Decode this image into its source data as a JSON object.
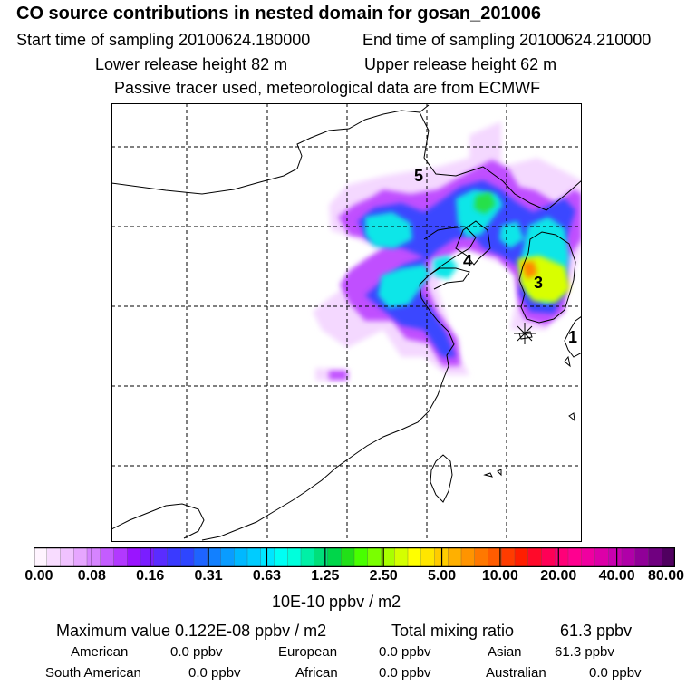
{
  "title": "CO  source contributions in nested domain for gosan_201006",
  "header": {
    "start_label": "Start time of sampling 20100624.180000",
    "end_label": "End time of sampling 20100624.210000",
    "lower_label": "Lower release height   82 m",
    "upper_label": "Upper release height   62 m",
    "info": "Passive tracer used, meteorological data are from ECMWF"
  },
  "map": {
    "region_labels": [
      "5",
      "4",
      "3",
      "1"
    ],
    "colors": {
      "frame": "#000000",
      "coast": "#000000",
      "grid": "#000000"
    }
  },
  "colorbar": {
    "ticks": [
      "0.00",
      "0.08",
      "0.16",
      "0.31",
      "0.63",
      "1.25",
      "2.50",
      "5.00",
      "10.00",
      "20.00",
      "40.00",
      "80.00"
    ],
    "unit": "10E-10 ppbv / m2",
    "colors": [
      "#fff4ff",
      "#f8dcff",
      "#f0c2ff",
      "#e6a6ff",
      "#d684ff",
      "#c45cff",
      "#b238ff",
      "#9a14ff",
      "#7a1eff",
      "#5a2cff",
      "#3a3aff",
      "#2e46ff",
      "#1e64ff",
      "#1280ff",
      "#0a9cff",
      "#00b8ff",
      "#00ccff",
      "#00e6ff",
      "#00fff4",
      "#00ffdc",
      "#00f0a6",
      "#00e07a",
      "#00d64a",
      "#22e018",
      "#48ff00",
      "#7aff00",
      "#a8ff00",
      "#d4ff00",
      "#ffff00",
      "#ffe600",
      "#ffcc00",
      "#ffb000",
      "#ff9400",
      "#ff7800",
      "#ff5c00",
      "#ff3c00",
      "#ff1e00",
      "#ff0a2a",
      "#ff0056",
      "#ff0078",
      "#ff0090",
      "#f000a0",
      "#dc00a8",
      "#c800b0",
      "#b000a8",
      "#900098",
      "#700080",
      "#500060"
    ]
  },
  "stats": {
    "max_label": "Maximum value  0.122E-08 ppbv / m2",
    "total_label": "Total mixing ratio",
    "total_value": "61.3 ppbv",
    "regions": [
      {
        "name": "American",
        "value": "0.0 ppbv"
      },
      {
        "name": "European",
        "value": "0.0 ppbv"
      },
      {
        "name": "Asian",
        "value": "61.3 ppbv"
      },
      {
        "name": "South American",
        "value": "0.0 ppbv"
      },
      {
        "name": "African",
        "value": "0.0 ppbv"
      },
      {
        "name": "Australian",
        "value": "0.0 ppbv"
      }
    ]
  }
}
